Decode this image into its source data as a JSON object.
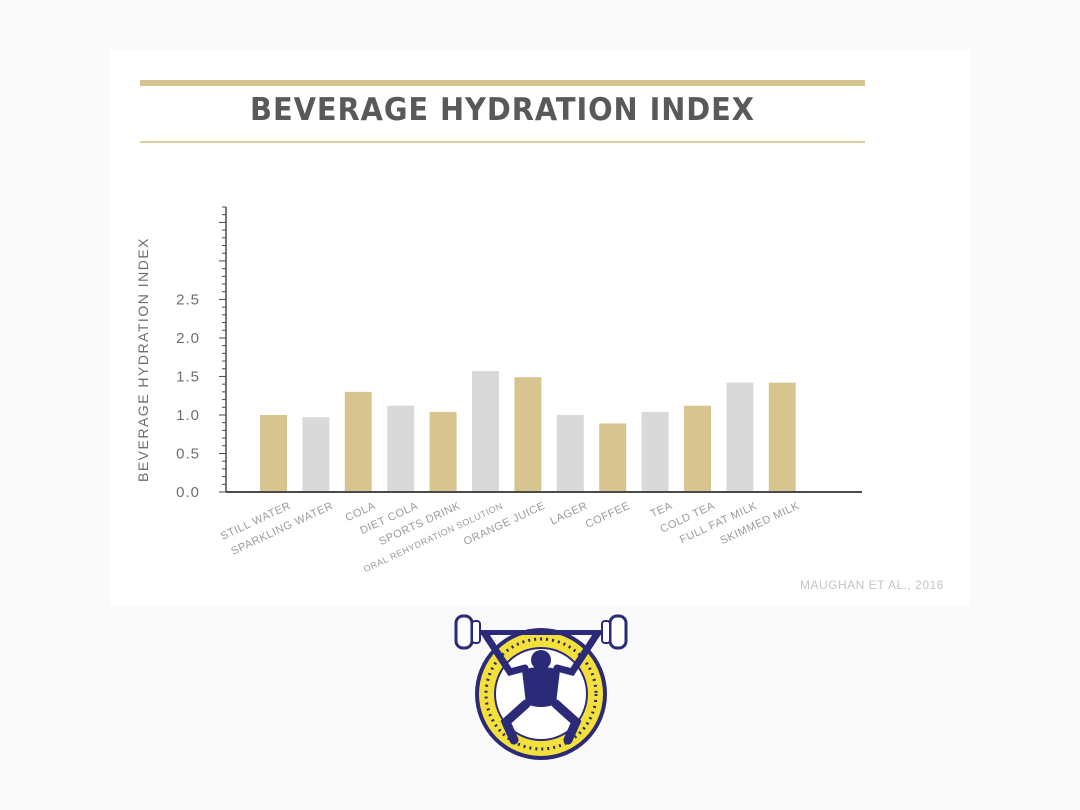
{
  "chart_data": {
    "type": "bar",
    "title": "BEVERAGE HYDRATION INDEX",
    "ylabel": "BEVERAGE HYDRATION INDEX",
    "xlabel": "",
    "categories": [
      "STILL WATER",
      "SPARKLING WATER",
      "COLA",
      "DIET COLA",
      "SPORTS DRINK",
      "ORAL REHYDRATION SOLUTION",
      "ORANGE JUICE",
      "LAGER",
      "COFFEE",
      "TEA",
      "COLD TEA",
      "FULL FAT MILK",
      "SKIMMED MILK"
    ],
    "values": [
      1.0,
      0.97,
      1.3,
      1.12,
      1.04,
      1.57,
      1.49,
      1.0,
      0.89,
      1.04,
      1.12,
      1.42,
      1.42
    ],
    "bar_colors": [
      "#d7c48f",
      "#d9d9d9",
      "#d7c48f",
      "#d9d9d9",
      "#d7c48f",
      "#d9d9d9",
      "#d7c48f",
      "#d9d9d9",
      "#d7c48f",
      "#d9d9d9",
      "#d7c48f",
      "#d9d9d9",
      "#d7c48f"
    ],
    "ylim": [
      0,
      3.7
    ],
    "yticks": [
      0.0,
      0.5,
      1.0,
      1.5,
      2.0,
      2.5
    ],
    "ytick_labels": [
      "0.0",
      "0.5",
      "1.0",
      "1.5",
      "2.0",
      "2.5"
    ],
    "grid": false,
    "legend": "none"
  },
  "source_credit": "MAUGHAN ET AL., 2016",
  "colors": {
    "gold": "#d7c48f",
    "grey": "#d9d9d9",
    "axis": "#4a4a4a",
    "text": "#58595b",
    "logo_navy": "#2b2a78",
    "logo_yellow": "#f3e03a"
  },
  "logo_icon": "weightlifter-emblem-icon"
}
